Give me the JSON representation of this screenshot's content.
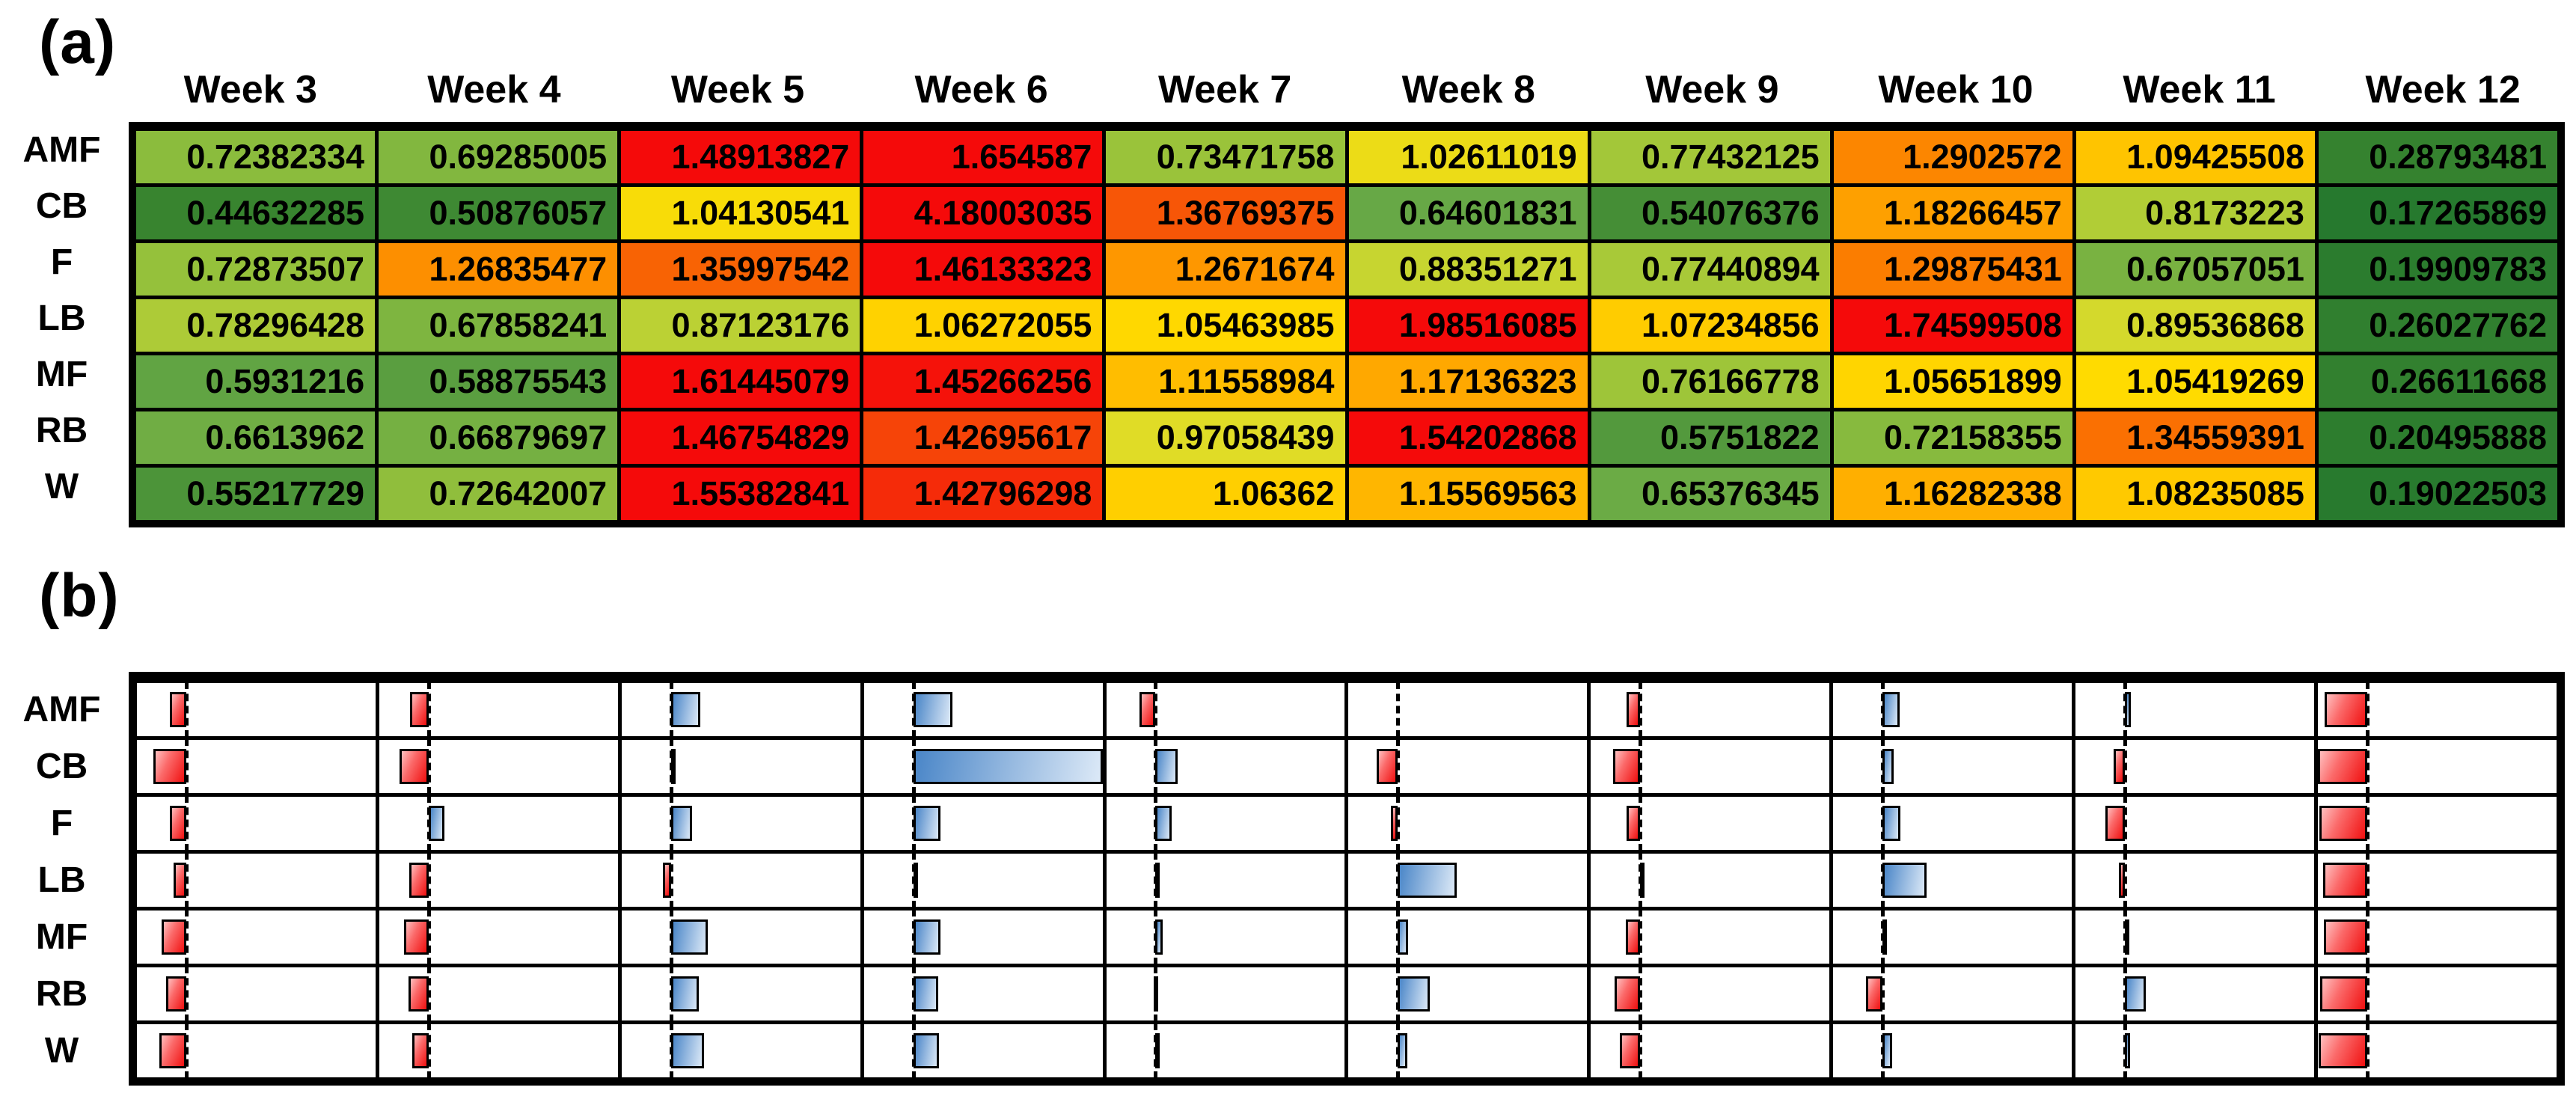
{
  "chart_data": [
    {
      "type": "heatmap",
      "panel_label": "(a)",
      "columns": [
        "Week 3",
        "Week 4",
        "Week 5",
        "Week 6",
        "Week 7",
        "Week 8",
        "Week 9",
        "Week 10",
        "Week 11",
        "Week 12"
      ],
      "rows": [
        "AMF",
        "CB",
        "F",
        "LB",
        "MF",
        "RB",
        "W"
      ],
      "values": [
        [
          "0.72382334",
          "0.69285005",
          "1.48913827",
          "1.654587",
          "0.73471758",
          "1.02611019",
          "0.77432125",
          "1.2902572",
          "1.09425508",
          "0.28793481"
        ],
        [
          "0.44632285",
          "0.50876057",
          "1.04130541",
          "4.18003035",
          "1.36769375",
          "0.64601831",
          "0.54076376",
          "1.18266457",
          "0.8173223",
          "0.17265869"
        ],
        [
          "0.72873507",
          "1.26835477",
          "1.35997542",
          "1.46133323",
          "1.2671674",
          "0.88351271",
          "0.77440894",
          "1.29875431",
          "0.67057051",
          "0.19909783"
        ],
        [
          "0.78296428",
          "0.67858241",
          "0.87123176",
          "1.06272055",
          "1.05463985",
          "1.98516085",
          "1.07234856",
          "1.74599508",
          "0.89536868",
          "0.26027762"
        ],
        [
          "0.5931216",
          "0.58875543",
          "1.61445079",
          "1.45266256",
          "1.11558984",
          "1.17136323",
          "0.76166778",
          "1.05651899",
          "1.05419269",
          "0.26611668"
        ],
        [
          "0.6613962",
          "0.66879697",
          "1.46754829",
          "1.42695617",
          "0.97058439",
          "1.54202868",
          "0.5751822",
          "0.72158355",
          "1.34559391",
          "0.20495888"
        ],
        [
          "0.55217729",
          "0.72642007",
          "1.55382841",
          "1.42796298",
          "1.06362",
          "1.15569563",
          "0.65376345",
          "1.16282338",
          "1.08235085",
          "0.19022503"
        ]
      ],
      "value_range": {
        "min": 0.17265869,
        "max": 4.18003035
      },
      "colormap": {
        "low": "#26792E",
        "mid": "#FFDC00",
        "high": "#F50A0A",
        "mapping": "percentile rank: green (low) through yellow to red (high)"
      }
    },
    {
      "type": "bar",
      "panel_label": "(b)",
      "rows": [
        "AMF",
        "CB",
        "F",
        "LB",
        "MF",
        "RB",
        "W"
      ],
      "columns_note": "same 10 week columns as panel (a), no headers shown",
      "baseline": 1,
      "bar_rule": "bar length proportional to |value - 1| of the panel (a) values; value < 1 draws a red bar extending left of the dashed baseline, value > 1 draws a blue bar extending right",
      "negative_color": "#F01010",
      "positive_color": "#4A86C8",
      "axis_style": "black dashed vertical baseline in each cell"
    }
  ]
}
